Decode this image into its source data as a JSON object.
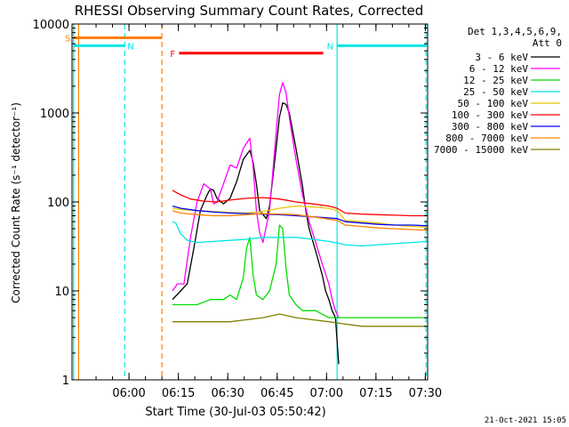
{
  "chart_data": {
    "type": "line",
    "title": "RHESSI Observing Summary Count Rates, Corrected",
    "xlabel": "Start Time (30-Jul-03 05:50:42)",
    "ylabel": "Corrected Count Rate (s⁻¹ detector⁻¹)",
    "yscale": "log",
    "ylim": [
      1,
      10000
    ],
    "xlim_min": [
      -8.0,
      100.0
    ],
    "x_tick_minutes": [
      9.3,
      24.3,
      39.3,
      54.3,
      69.3,
      84.3,
      99.3
    ],
    "x_tick_labels": [
      "06:00",
      "06:15",
      "06:30",
      "06:45",
      "07:00",
      "07:15",
      "07:30"
    ],
    "y_ticks": [
      1,
      10,
      100,
      1000,
      10000
    ],
    "y_tick_labels": [
      "1",
      "10",
      "100",
      "1000",
      "10000"
    ],
    "detector_info": "Det 1,3,4,5,6,9,",
    "attenuator_info": "Att 0",
    "timestamp": "21-Oct-2021 15:05",
    "legend": [
      {
        "label": "3 - 6 keV",
        "color": "#000000"
      },
      {
        "label": "6 - 12 keV",
        "color": "#ff00ff"
      },
      {
        "label": "12 - 25 keV",
        "color": "#00dd00"
      },
      {
        "label": "25 - 50 keV",
        "color": "#00e5e5"
      },
      {
        "label": "50 - 100 keV",
        "color": "#e5c800"
      },
      {
        "label": "100 - 300 keV",
        "color": "#ff0000"
      },
      {
        "label": "300 - 800 keV",
        "color": "#0000ff"
      },
      {
        "label": "800 - 7000 keV",
        "color": "#ff8000"
      },
      {
        "label": "7000 - 15000 keV",
        "color": "#808000"
      }
    ],
    "flags": [
      {
        "label": "S",
        "color": "#ff8000",
        "x_start": -7.5,
        "x_end": 19.3,
        "y": 7000
      },
      {
        "label": "N",
        "color": "#00e5e5",
        "x_start": -7.5,
        "x_end": 8.0,
        "y": 5700
      },
      {
        "label": "N",
        "color": "#00e5e5",
        "x_start": 72.5,
        "x_end": 99.5,
        "y": 5700
      },
      {
        "label": "F",
        "color": "#ff0000",
        "x_start": 24.5,
        "x_end": 68.3,
        "y": 4700
      }
    ],
    "vertical_markers": [
      {
        "x": -7.5,
        "color": "#00e5e5",
        "style": "solid"
      },
      {
        "x": -6.0,
        "color": "#ff8000",
        "style": "solid"
      },
      {
        "x": 8.0,
        "color": "#00e5e5",
        "style": "dashed"
      },
      {
        "x": 19.3,
        "color": "#ff8000",
        "style": "dashed"
      },
      {
        "x": 72.5,
        "color": "#00e5e5",
        "style": "solid"
      },
      {
        "x": 99.5,
        "color": "#00e5e5",
        "style": "dashed"
      }
    ],
    "series": [
      {
        "name": "3 - 6 keV",
        "color": "#000000",
        "x": [
          22.5,
          25,
          27,
          29,
          31,
          33,
          34,
          35,
          36,
          38,
          40,
          42,
          44,
          46,
          47,
          48,
          49,
          51,
          52,
          54,
          55,
          56,
          57,
          58,
          60,
          62,
          63,
          64,
          66,
          68,
          69,
          70,
          71,
          72,
          73
        ],
        "y": [
          8,
          10,
          12,
          30,
          80,
          120,
          140,
          135,
          110,
          95,
          110,
          170,
          300,
          380,
          280,
          160,
          80,
          65,
          90,
          400,
          900,
          1300,
          1250,
          1000,
          400,
          150,
          80,
          50,
          28,
          15,
          10,
          8,
          6,
          5,
          1.5
        ]
      },
      {
        "name": "6 - 12 keV",
        "color": "#ff00ff",
        "x": [
          22.5,
          24,
          26,
          28,
          30,
          32,
          34,
          35,
          36,
          38,
          40,
          42,
          44,
          46,
          47,
          48,
          49,
          50,
          52,
          54,
          55,
          56,
          57,
          58,
          60,
          62,
          64,
          66,
          68,
          70,
          71,
          72,
          73
        ],
        "y": [
          10,
          12,
          12,
          40,
          100,
          160,
          140,
          95,
          100,
          160,
          260,
          240,
          400,
          520,
          250,
          80,
          45,
          35,
          80,
          600,
          1600,
          2200,
          1700,
          900,
          300,
          120,
          60,
          35,
          20,
          12,
          8,
          6,
          5
        ]
      },
      {
        "name": "12 - 25 keV",
        "color": "#00dd00",
        "x": [
          22.5,
          26,
          30,
          34,
          38,
          40,
          42,
          44,
          45,
          46,
          47,
          48,
          50,
          52,
          54,
          55,
          56,
          57,
          58,
          60,
          62,
          66,
          70,
          74,
          80,
          90,
          100
        ],
        "y": [
          7,
          7,
          7,
          8,
          8,
          9,
          8,
          14,
          30,
          40,
          15,
          9,
          8,
          10,
          20,
          55,
          50,
          18,
          9,
          7,
          6,
          6,
          5,
          5,
          5,
          5,
          5
        ]
      },
      {
        "name": "25 - 50 keV",
        "color": "#00e5e5",
        "x": [
          22.5,
          23.5,
          25,
          27,
          30,
          35,
          40,
          45,
          50,
          55,
          60,
          65,
          70,
          75,
          80,
          85,
          90,
          95,
          100
        ],
        "y": [
          60,
          58,
          44,
          37,
          35,
          36,
          37,
          38,
          40,
          40,
          40,
          38,
          36,
          33,
          32,
          33,
          34,
          35,
          36
        ]
      },
      {
        "name": "50 - 100 keV",
        "color": "#e5c800",
        "x": [
          22.5,
          25,
          30,
          35,
          40,
          45,
          50,
          55,
          60,
          65,
          70,
          72.5,
          75,
          80,
          85,
          90,
          95,
          100
        ],
        "y": [
          85,
          82,
          80,
          78,
          76,
          75,
          78,
          85,
          90,
          88,
          85,
          80,
          62,
          60,
          58,
          55,
          53,
          52
        ]
      },
      {
        "name": "100 - 300 keV",
        "color": "#ff0000",
        "x": [
          22.5,
          25,
          28,
          32,
          36,
          40,
          45,
          50,
          55,
          60,
          65,
          70,
          72.5,
          75,
          80,
          85,
          90,
          95,
          100
        ],
        "y": [
          135,
          120,
          108,
          102,
          100,
          105,
          110,
          112,
          108,
          100,
          95,
          90,
          85,
          75,
          73,
          72,
          71,
          70,
          70
        ]
      },
      {
        "name": "300 - 800 keV",
        "color": "#0000ff",
        "x": [
          22.5,
          25,
          30,
          35,
          40,
          45,
          50,
          55,
          60,
          65,
          70,
          72.5,
          75,
          80,
          85,
          90,
          95,
          100
        ],
        "y": [
          90,
          85,
          80,
          77,
          75,
          74,
          73,
          72,
          70,
          68,
          66,
          65,
          60,
          58,
          56,
          55,
          55,
          54
        ]
      },
      {
        "name": "800 - 7000 keV",
        "color": "#ff8000",
        "x": [
          22.5,
          25,
          30,
          35,
          40,
          45,
          50,
          55,
          60,
          65,
          70,
          72.5,
          75,
          80,
          85,
          90,
          95,
          100
        ],
        "y": [
          80,
          75,
          72,
          70,
          70,
          72,
          74,
          73,
          72,
          68,
          64,
          62,
          55,
          53,
          51,
          50,
          49,
          48
        ]
      },
      {
        "name": "7000 - 15000 keV",
        "color": "#808000",
        "x": [
          22.5,
          30,
          40,
          50,
          55,
          60,
          70,
          80,
          90,
          100
        ],
        "y": [
          4.5,
          4.5,
          4.5,
          5,
          5.5,
          5,
          4.5,
          4,
          4,
          4
        ]
      }
    ]
  }
}
